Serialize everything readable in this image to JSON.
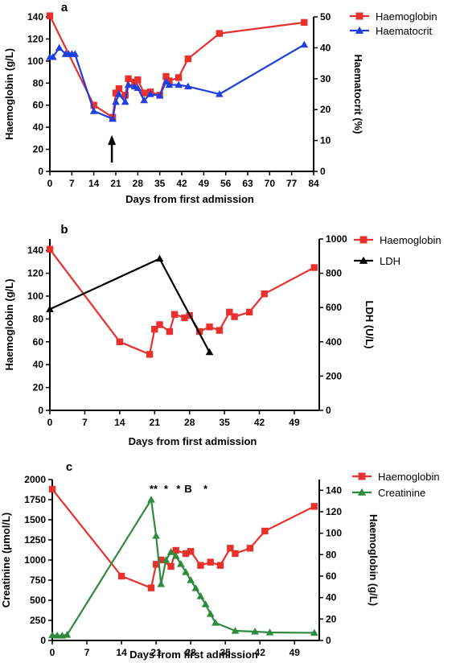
{
  "colors": {
    "haemoglobin": "#e8302c",
    "haematocrit": "#1f3fe0",
    "ldh": "#000000",
    "creatinine": "#2e8b3e",
    "axis": "#000000"
  },
  "chart_data": [
    {
      "type": "line",
      "panel_label": "a",
      "xlabel": "Days from first admission",
      "ylabel_left": "Haemoglobin (g/L)",
      "ylabel_right": "Haematocrit (%)",
      "xlim": [
        0,
        84
      ],
      "ylim_left": [
        0,
        140
      ],
      "ylim_right": [
        0,
        50
      ],
      "xticks": [
        0,
        7,
        14,
        21,
        28,
        35,
        42,
        49,
        56,
        63,
        70,
        77,
        84
      ],
      "yticks_left": [
        0,
        20,
        40,
        60,
        80,
        100,
        120,
        140
      ],
      "yticks_right": [
        0,
        10,
        20,
        30,
        40,
        50
      ],
      "legend_position": "top-right",
      "arrow_annotation_x": 20,
      "series": [
        {
          "name": "Haemoglobin",
          "axis": "left",
          "marker": "square",
          "x": [
            0,
            14,
            20,
            21,
            22,
            24,
            25,
            27,
            28,
            30,
            32,
            35,
            37,
            38,
            41,
            44,
            54,
            81
          ],
          "y": [
            141,
            60,
            49,
            71,
            75,
            69,
            84,
            81,
            83,
            71,
            72,
            69,
            86,
            82,
            85,
            102,
            125,
            135
          ]
        },
        {
          "name": "Haematocrit",
          "axis": "right",
          "marker": "triangle",
          "x": [
            0,
            1,
            3,
            5,
            6,
            7,
            8,
            14,
            20,
            21,
            22,
            24,
            25,
            27,
            28,
            30,
            32,
            35,
            37,
            38,
            41,
            44,
            54,
            81
          ],
          "y": [
            37,
            37,
            40,
            38,
            38,
            38,
            38,
            19.5,
            17,
            22.5,
            25,
            22.5,
            28,
            27.5,
            27,
            23,
            25,
            24.5,
            29,
            28,
            28,
            27.5,
            25,
            41
          ]
        }
      ]
    },
    {
      "type": "line",
      "panel_label": "b",
      "xlabel": "Days from first admission",
      "ylabel_left": "Haemoglobin (g/L)",
      "ylabel_right": "LDH (U/L)",
      "xlim": [
        0,
        54
      ],
      "ylim_left": [
        0,
        150
      ],
      "ylim_right": [
        0,
        1000
      ],
      "xticks": [
        0,
        7,
        14,
        21,
        28,
        35,
        42,
        49
      ],
      "yticks_left": [
        0,
        20,
        40,
        60,
        80,
        100,
        120,
        140
      ],
      "yticks_right": [
        0,
        200,
        400,
        600,
        800,
        1000
      ],
      "legend_position": "top-right",
      "series": [
        {
          "name": "Haemoglobin",
          "axis": "left",
          "marker": "square",
          "x": [
            0,
            14,
            20,
            21,
            22,
            24,
            25,
            27,
            28,
            30,
            32,
            34,
            36,
            37,
            40,
            43,
            53
          ],
          "y": [
            141,
            60,
            49,
            71,
            75,
            69,
            84,
            81,
            83,
            69,
            73,
            70,
            86,
            82,
            86,
            102,
            125
          ]
        },
        {
          "name": "LDH",
          "axis": "right",
          "marker": "triangle",
          "x": [
            0,
            22,
            32
          ],
          "y": [
            590,
            885,
            340
          ]
        }
      ]
    },
    {
      "type": "line",
      "panel_label": "c",
      "xlabel": "Days from first admission",
      "ylabel_left": "Creatinine (μmol/L)",
      "ylabel_right": "Haemoglobin (g/L)",
      "xlim": [
        0,
        54
      ],
      "ylim_left": [
        0,
        2000
      ],
      "ylim_right": [
        0,
        150
      ],
      "xticks": [
        0,
        7,
        14,
        21,
        28,
        35,
        42,
        49
      ],
      "yticks_left": [
        0,
        250,
        500,
        750,
        1000,
        1250,
        1500,
        1750,
        2000
      ],
      "yticks_right": [
        0,
        20,
        40,
        60,
        80,
        100,
        120,
        140
      ],
      "legend_position": "top-right",
      "annotations": [
        {
          "text": "**",
          "x": 20.5
        },
        {
          "text": "*",
          "x": 23
        },
        {
          "text": "*",
          "x": 25.5
        },
        {
          "text": "B",
          "x": 27.5
        },
        {
          "text": "*",
          "x": 31
        }
      ],
      "series": [
        {
          "name": "Haemoglobin",
          "axis": "right",
          "marker": "square",
          "x": [
            0,
            14,
            20,
            21,
            22,
            24,
            25,
            27,
            28,
            30,
            32,
            34,
            36,
            37,
            40,
            43,
            53
          ],
          "y": [
            141,
            60,
            49,
            71,
            75,
            69,
            84,
            81,
            83,
            70,
            73,
            70,
            86,
            81,
            86,
            102,
            125
          ]
        },
        {
          "name": "Creatinine",
          "axis": "left",
          "marker": "triangle",
          "x": [
            0,
            1,
            2,
            3,
            20,
            21,
            22,
            23,
            24,
            25,
            26,
            27,
            28,
            29,
            30,
            31,
            32,
            33,
            37,
            41,
            44,
            53
          ],
          "y": [
            65,
            60,
            60,
            70,
            1750,
            1300,
            700,
            1000,
            1100,
            1050,
            950,
            850,
            750,
            650,
            550,
            450,
            330,
            220,
            120,
            110,
            100,
            95
          ]
        }
      ]
    }
  ]
}
